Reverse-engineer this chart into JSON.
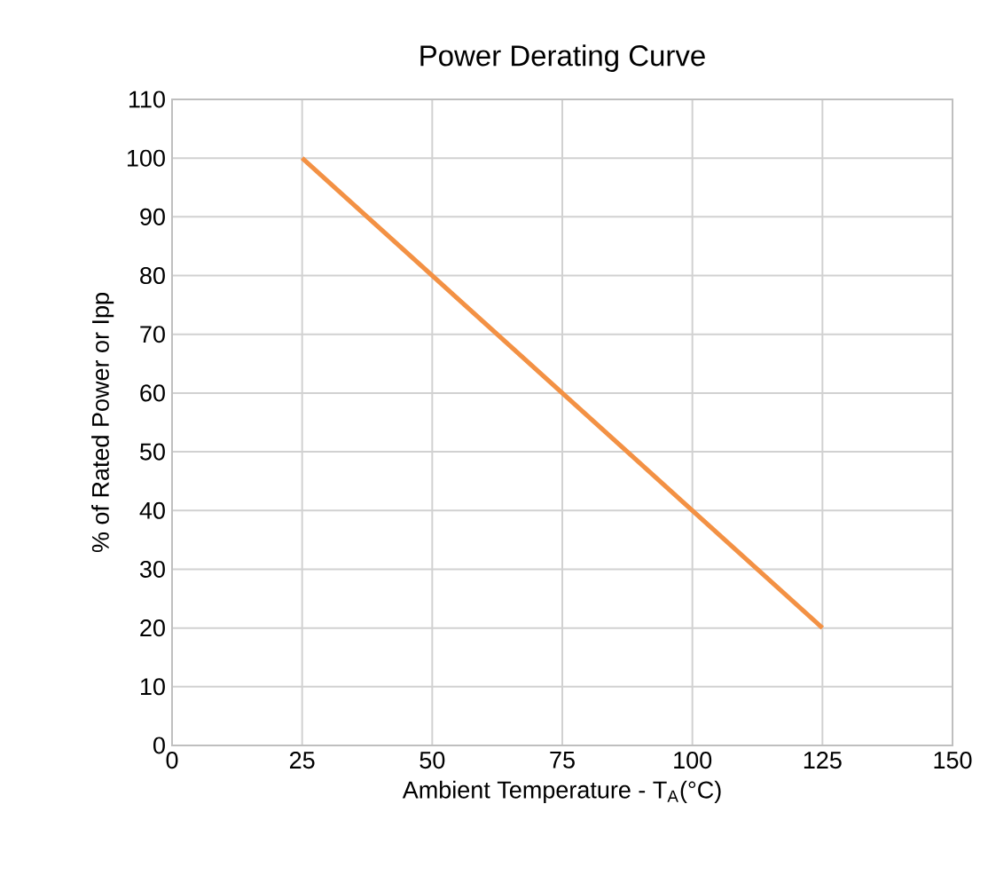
{
  "chart_data": {
    "type": "line",
    "title": "Power Derating Curve",
    "xlabel": "Ambient Temperature - T$_{A}$(°C)",
    "ylabel": "% of Rated Power or Ipp",
    "x": [
      25,
      125
    ],
    "values": [
      100,
      20
    ],
    "color": "#f39144",
    "xlim": [
      0,
      150
    ],
    "ylim": [
      0,
      110
    ],
    "xticks": [
      0,
      25,
      50,
      75,
      100,
      125,
      150
    ],
    "yticks": [
      0,
      10,
      20,
      30,
      40,
      50,
      60,
      70,
      80,
      90,
      100,
      110
    ],
    "grid": true
  }
}
